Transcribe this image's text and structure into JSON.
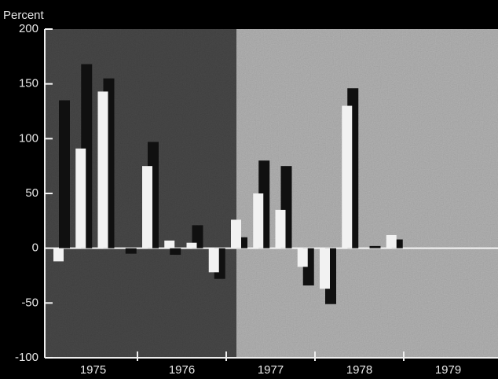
{
  "chart_data": {
    "type": "bar",
    "ylabel": "Percent",
    "categories": [
      null,
      null,
      null,
      null,
      null,
      null,
      null,
      null,
      null,
      null,
      null,
      null,
      null,
      null,
      null,
      null,
      null,
      null,
      null,
      null
    ],
    "x_groups": [
      "1975",
      "1976",
      "1977",
      "1978",
      "1979"
    ],
    "series": [
      {
        "color": "#101010",
        "values": [
          135,
          168,
          155,
          -5,
          97,
          -6,
          21,
          -28,
          10,
          80,
          75,
          -34,
          -51,
          146,
          2,
          8,
          null,
          null,
          null,
          null
        ]
      },
      {
        "color": "#f2f2f2",
        "values": [
          -12,
          91,
          143,
          0,
          75,
          7,
          5,
          -22,
          26,
          50,
          35,
          -17,
          -37,
          130,
          0,
          12,
          null,
          null,
          null,
          null
        ]
      }
    ],
    "ylim": [
      -100,
      200
    ],
    "yticks": [
      200,
      150,
      100,
      50,
      0,
      -50,
      -100
    ]
  }
}
